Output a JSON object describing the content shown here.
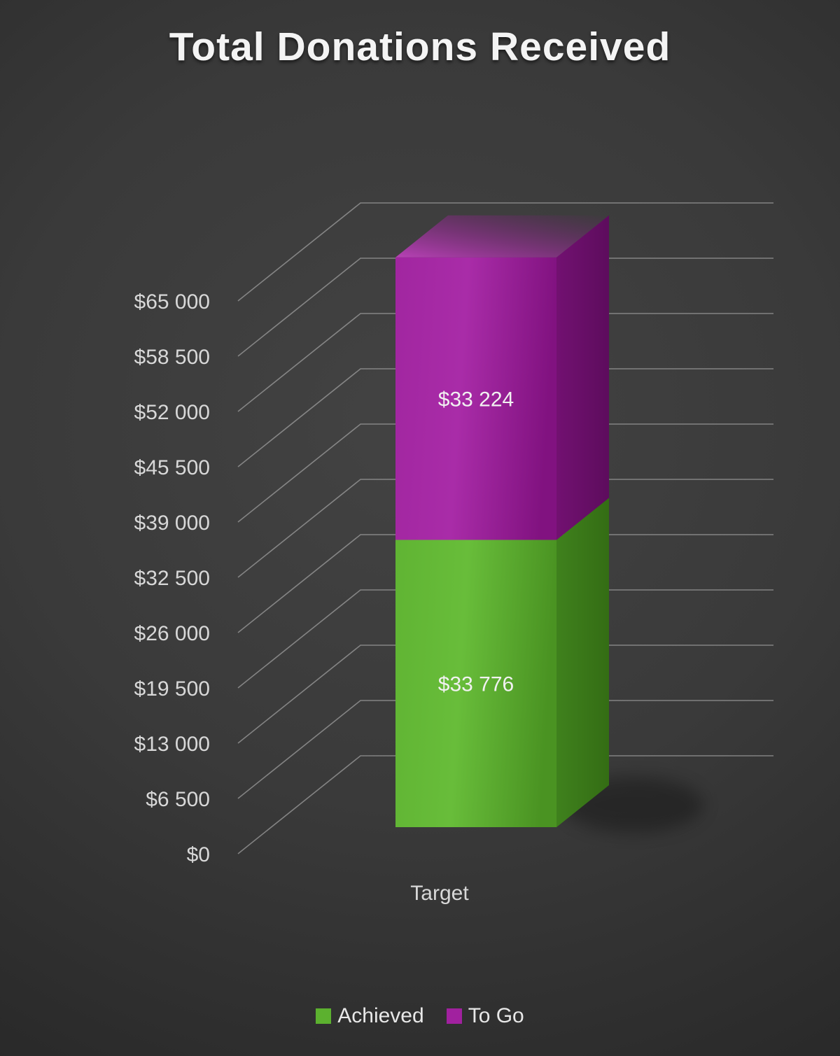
{
  "chart_data": {
    "type": "bar",
    "subtype": "stacked-3d-column",
    "title": "Total Donations Received",
    "categories": [
      "Target"
    ],
    "series": [
      {
        "name": "Achieved",
        "values": [
          33776
        ],
        "data_label": "$33 776",
        "color": "#5cb12f"
      },
      {
        "name": "To Go",
        "values": [
          33224
        ],
        "data_label": "$33 224",
        "color": "#a1219f"
      }
    ],
    "ylim": [
      0,
      65000
    ],
    "ytick_values": [
      0,
      6500,
      13000,
      19500,
      26000,
      32500,
      39000,
      45500,
      52000,
      58500,
      65000
    ],
    "ytick_labels": [
      "$0",
      "$6 500",
      "$13 000",
      "$19 500",
      "$26 000",
      "$32 500",
      "$39 000",
      "$45 500",
      "$52 000",
      "$58 500",
      "$65 000"
    ],
    "xlabel": "",
    "ylabel": "",
    "grid": true,
    "legend_position": "bottom",
    "legend": [
      "Achieved",
      "To Go"
    ],
    "colors": {
      "background": "#3a3a3a",
      "text": "#d8d8d8",
      "gridline": "#9c9c9c"
    }
  }
}
